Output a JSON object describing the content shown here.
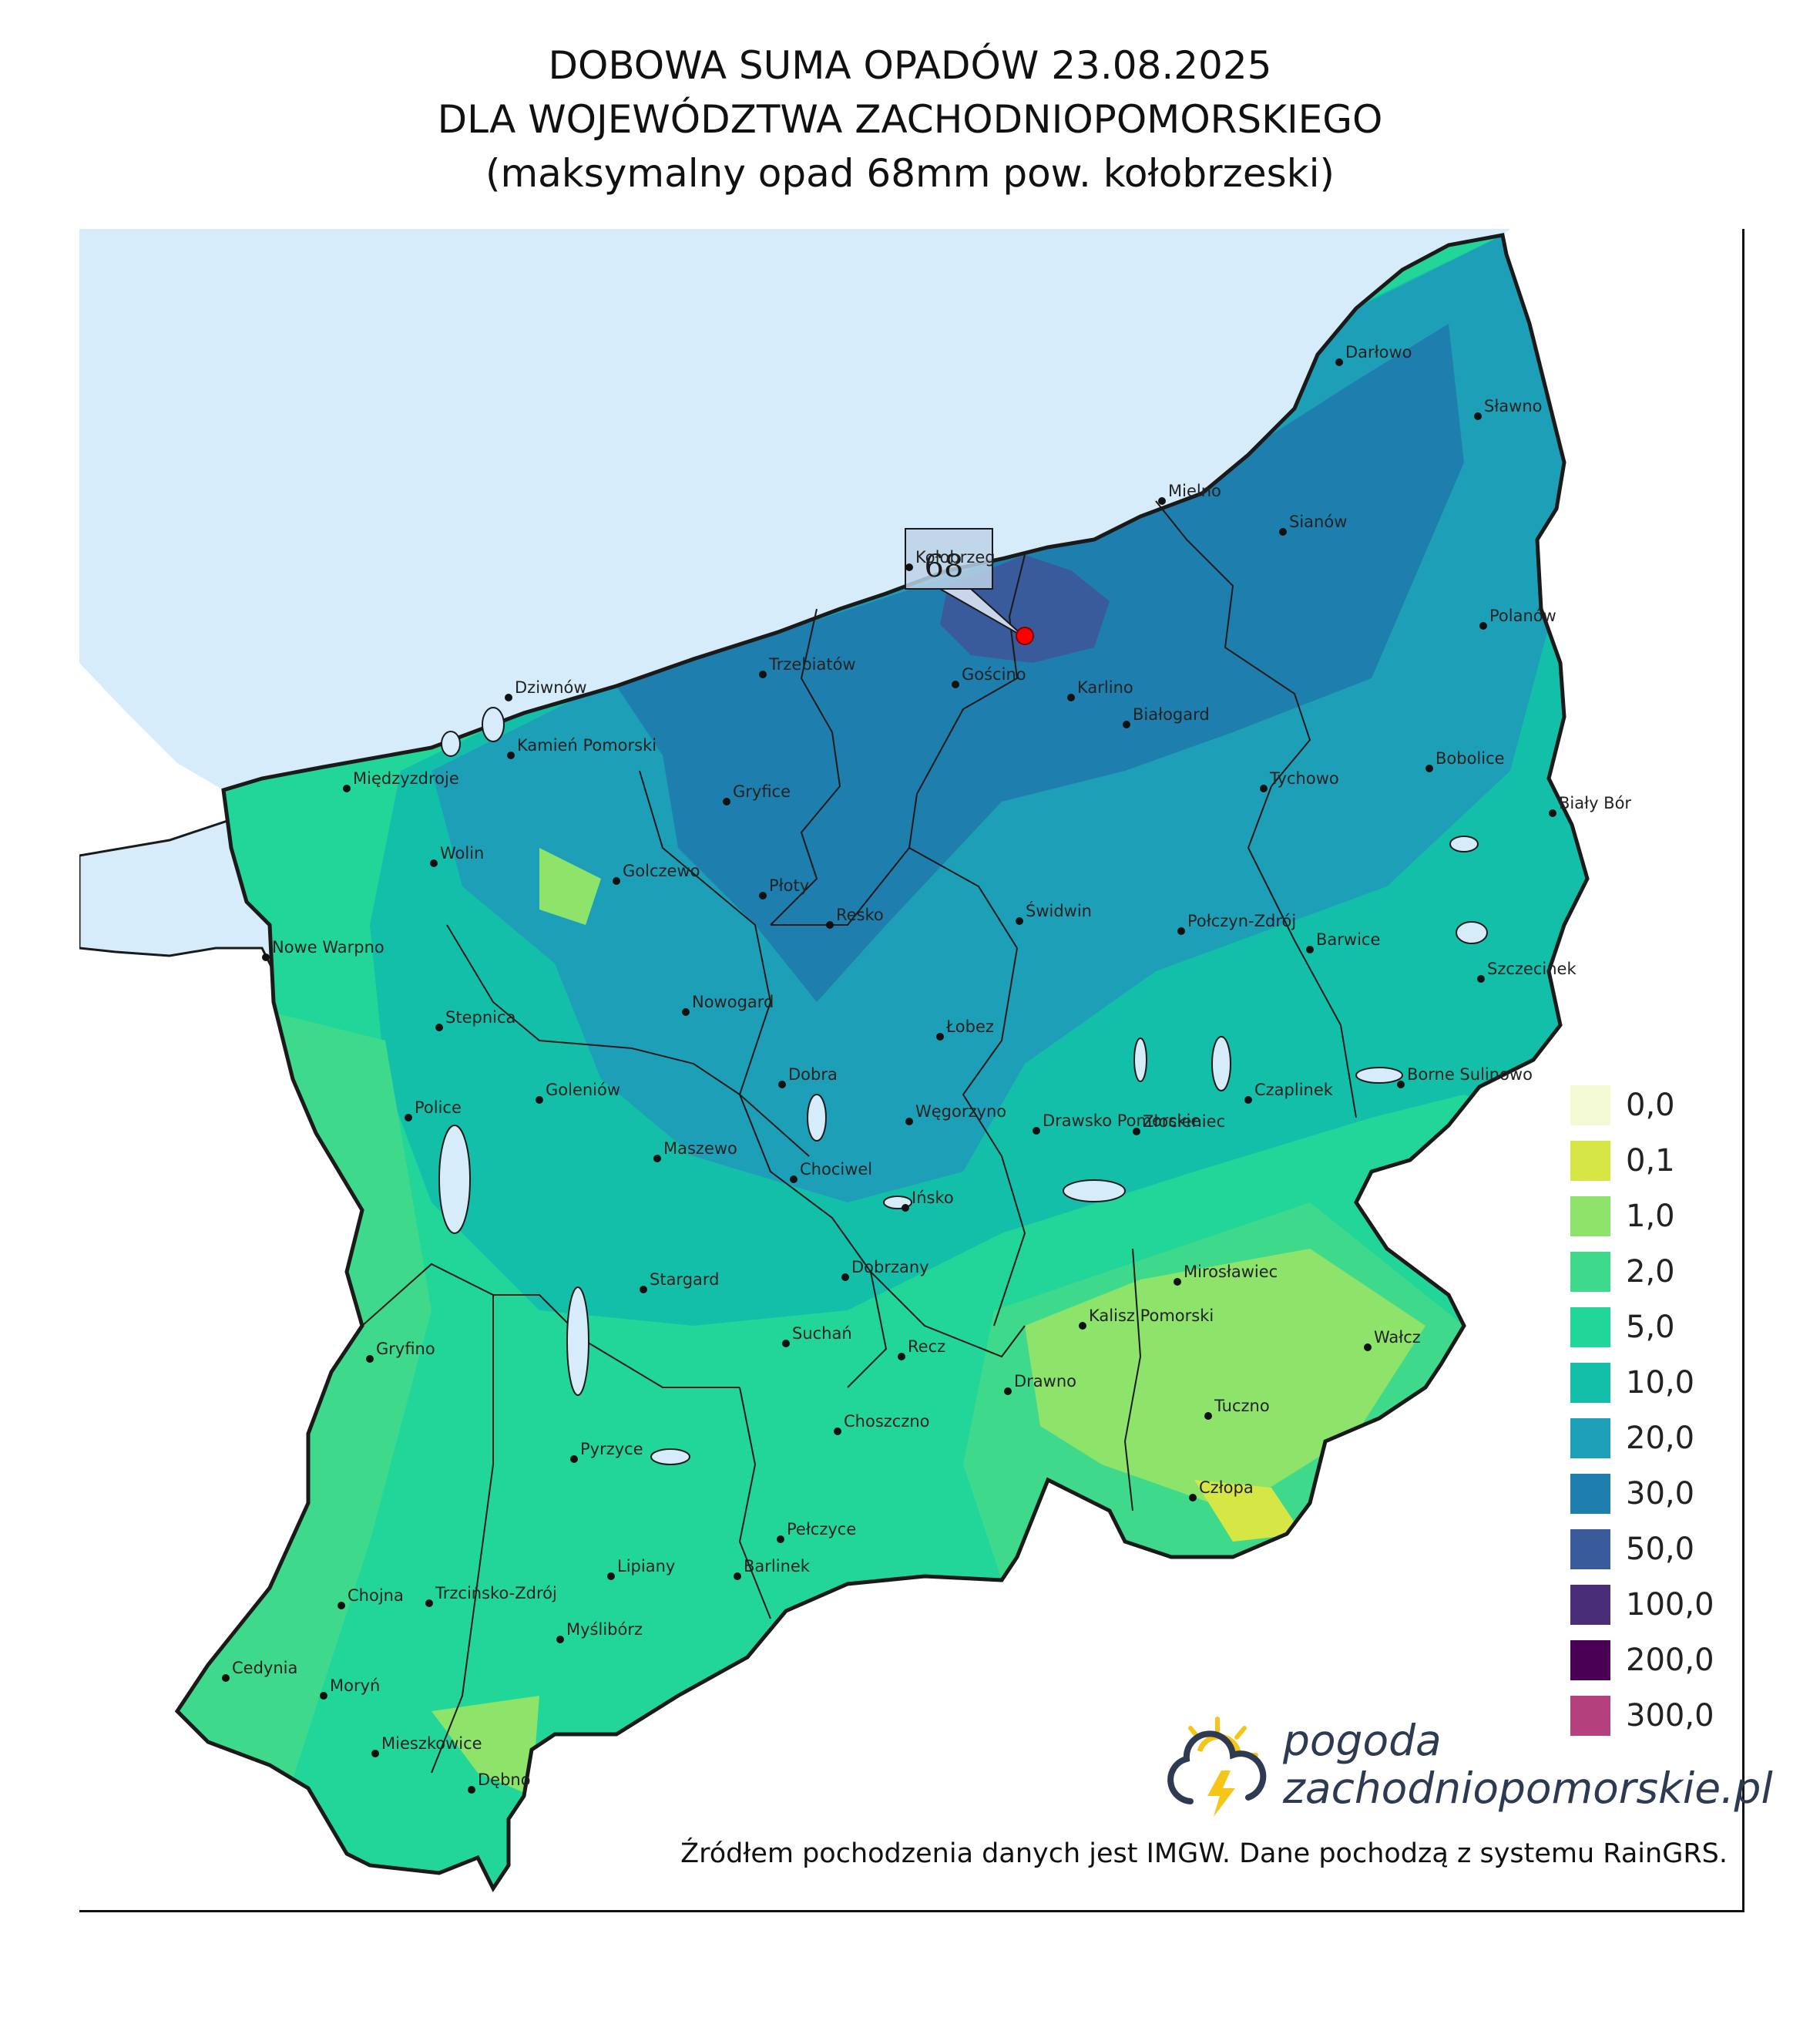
{
  "title": {
    "line1": "DOBOWA SUMA OPADÓW 23.08.2025",
    "line2": "DLA WOJEWÓDZTWA ZACHODNIOPOMORSKIEGO",
    "line3": "(maksymalny opad 68mm pow. kołobrzeski)"
  },
  "max_marker": {
    "label": "68",
    "color": "#ff0000"
  },
  "colors": {
    "sea": "#d6ecfb",
    "border": "#1a1a1a"
  },
  "cities": [
    {
      "name": "Darłowo"
    },
    {
      "name": "Sławno"
    },
    {
      "name": "Mielno"
    },
    {
      "name": "Sianów"
    },
    {
      "name": "Kołobrzeg"
    },
    {
      "name": "Polanów"
    },
    {
      "name": "Trzebiatów"
    },
    {
      "name": "Gościno"
    },
    {
      "name": "Karlino"
    },
    {
      "name": "Białogard"
    },
    {
      "name": "Dziwnów"
    },
    {
      "name": "Kamień Pomorski"
    },
    {
      "name": "Bobolice"
    },
    {
      "name": "Międzyzdroje"
    },
    {
      "name": "Gryfice"
    },
    {
      "name": "Tychowo"
    },
    {
      "name": "Biały Bór"
    },
    {
      "name": "Wolin"
    },
    {
      "name": "Golczewo"
    },
    {
      "name": "Płoty"
    },
    {
      "name": "Resko"
    },
    {
      "name": "Świdwin"
    },
    {
      "name": "Połczyn-Zdrój"
    },
    {
      "name": "Barwice"
    },
    {
      "name": "Nowe Warpno"
    },
    {
      "name": "Szczecinek"
    },
    {
      "name": "Nowogard"
    },
    {
      "name": "Stepnica"
    },
    {
      "name": "Łobez"
    },
    {
      "name": "Dobra"
    },
    {
      "name": "Goleniów"
    },
    {
      "name": "Borne Sulinowo"
    },
    {
      "name": "Czaplinek"
    },
    {
      "name": "Police"
    },
    {
      "name": "Węgorzyno"
    },
    {
      "name": "Złocieniec"
    },
    {
      "name": "Drawsko Pomorskie"
    },
    {
      "name": "Maszewo"
    },
    {
      "name": "Chociwel"
    },
    {
      "name": "Ińsko"
    },
    {
      "name": "Dobrzany"
    },
    {
      "name": "Stargard"
    },
    {
      "name": "Mirosławiec"
    },
    {
      "name": "Kalisz Pomorski"
    },
    {
      "name": "Gryfino"
    },
    {
      "name": "Suchań"
    },
    {
      "name": "Recz"
    },
    {
      "name": "Wałcz"
    },
    {
      "name": "Drawno"
    },
    {
      "name": "Choszczno"
    },
    {
      "name": "Tuczno"
    },
    {
      "name": "Pyrzyce"
    },
    {
      "name": "Człopa"
    },
    {
      "name": "Pełczyce"
    },
    {
      "name": "Lipiany"
    },
    {
      "name": "Barlinek"
    },
    {
      "name": "Chojna"
    },
    {
      "name": "Trzcińsko-Zdrój"
    },
    {
      "name": "Myślibórz"
    },
    {
      "name": "Cedynia"
    },
    {
      "name": "Moryń"
    },
    {
      "name": "Mieszkowice"
    },
    {
      "name": "Dębno"
    }
  ],
  "legend": [
    {
      "label": "0,0",
      "color": "#f4f9d6"
    },
    {
      "label": "0,1",
      "color": "#d6e645"
    },
    {
      "label": "1,0",
      "color": "#8ee46a"
    },
    {
      "label": "2,0",
      "color": "#3fd98c"
    },
    {
      "label": "5,0",
      "color": "#22d69a"
    },
    {
      "label": "10,0",
      "color": "#13bfa9"
    },
    {
      "label": "20,0",
      "color": "#1e9fb8"
    },
    {
      "label": "30,0",
      "color": "#1e7fae"
    },
    {
      "label": "50,0",
      "color": "#395b9b"
    },
    {
      "label": "100,0",
      "color": "#4a2d78"
    },
    {
      "label": "200,0",
      "color": "#4a0055"
    },
    {
      "label": "300,0",
      "color": "#b5407e"
    }
  ],
  "logo": {
    "line1": "pogoda",
    "line2": "zachodniopomorskie.pl",
    "sun_color": "#f5c518",
    "cloud_color": "#2e3a52"
  },
  "source_note": "Źródłem pochodzenia danych jest IMGW. Dane pochodzą z systemu RainGRS."
}
